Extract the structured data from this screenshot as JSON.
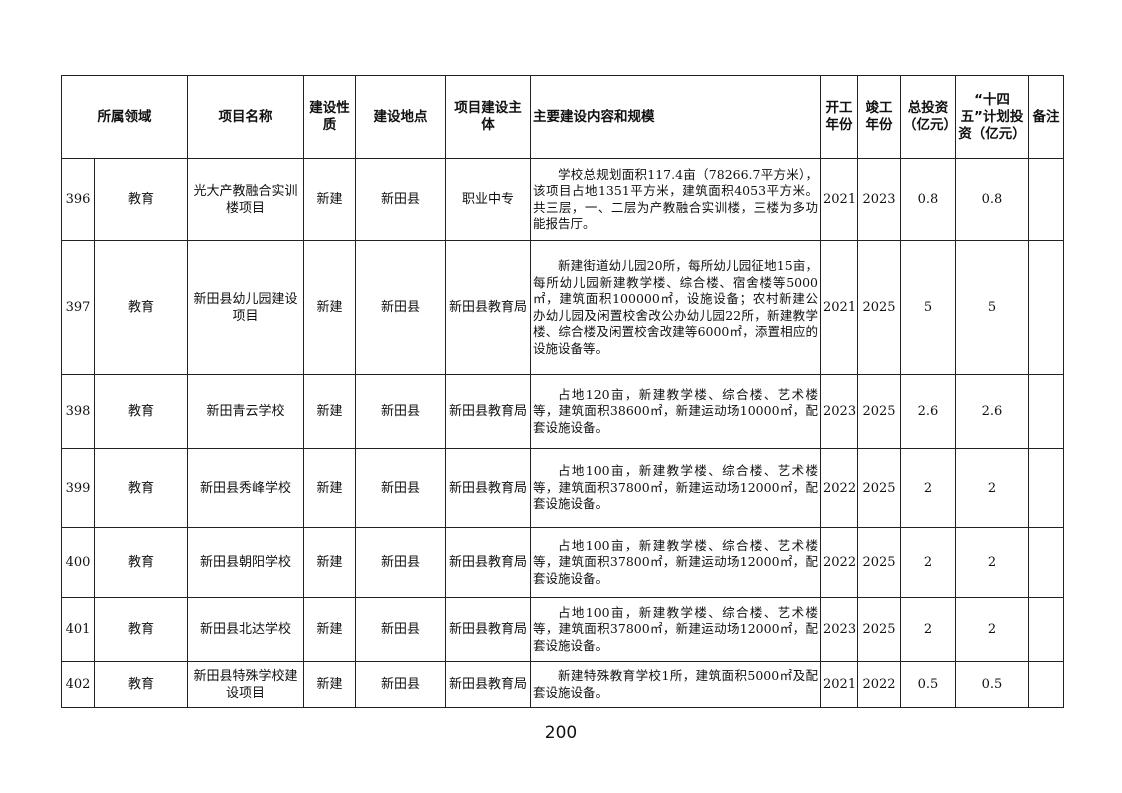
{
  "headers": {
    "domain": "所属领域",
    "name": "项目名称",
    "nature": "建设性质",
    "location": "建设地点",
    "owner": "项目建设主体",
    "content": "主要建设内容和规模",
    "start": "开工年份",
    "end": "竣工年份",
    "total": "总投资（亿元）",
    "plan": "“十四五”计划投资（亿元）",
    "remark": "备注"
  },
  "rows": [
    {
      "no": "396",
      "domain": "教育",
      "name": "光大产教融合实训楼项目",
      "nature": "新建",
      "location": "新田县",
      "owner": "职业中专",
      "content": "学校总规划面积117.4亩（78266.7平方米），该项目占地1351平方米，建筑面积4053平方米。共三层，一、二层为产教融合实训楼，三楼为多功能报告厅。",
      "start": "2021",
      "end": "2023",
      "total": "0.8",
      "plan": "0.8",
      "remark": ""
    },
    {
      "no": "397",
      "domain": "教育",
      "name": "新田县幼儿园建设项目",
      "nature": "新建",
      "location": "新田县",
      "owner": "新田县教育局",
      "content": "新建街道幼儿园20所，每所幼儿园征地15亩，每所幼儿园新建教学楼、综合楼、宿舍楼等5000㎡，建筑面积100000㎡，设施设备；农村新建公办幼儿园及闲置校舍改公办幼儿园22所，新建教学楼、综合楼及闲置校舍改建等6000㎡，添置相应的设施设备等。",
      "start": "2021",
      "end": "2025",
      "total": "5",
      "plan": "5",
      "remark": ""
    },
    {
      "no": "398",
      "domain": "教育",
      "name": "新田青云学校",
      "nature": "新建",
      "location": "新田县",
      "owner": "新田县教育局",
      "content": "占地120亩，新建教学楼、综合楼、艺术楼等，建筑面积38600㎡，新建运动场10000㎡，配套设施设备。",
      "start": "2023",
      "end": "2025",
      "total": "2.6",
      "plan": "2.6",
      "remark": ""
    },
    {
      "no": "399",
      "domain": "教育",
      "name": "新田县秀峰学校",
      "nature": "新建",
      "location": "新田县",
      "owner": "新田县教育局",
      "content": "占地100亩，新建教学楼、综合楼、艺术楼等，建筑面积37800㎡，新建运动场12000㎡，配套设施设备。",
      "start": "2022",
      "end": "2025",
      "total": "2",
      "plan": "2",
      "remark": ""
    },
    {
      "no": "400",
      "domain": "教育",
      "name": "新田县朝阳学校",
      "nature": "新建",
      "location": "新田县",
      "owner": "新田县教育局",
      "content": "占地100亩，新建教学楼、综合楼、艺术楼等，建筑面积37800㎡，新建运动场12000㎡，配套设施设备。",
      "start": "2022",
      "end": "2025",
      "total": "2",
      "plan": "2",
      "remark": ""
    },
    {
      "no": "401",
      "domain": "教育",
      "name": "新田县北达学校",
      "nature": "新建",
      "location": "新田县",
      "owner": "新田县教育局",
      "content": "占地100亩，新建教学楼、综合楼、艺术楼等，建筑面积37800㎡，新建运动场12000㎡，配套设施设备。",
      "start": "2023",
      "end": "2025",
      "total": "2",
      "plan": "2",
      "remark": ""
    },
    {
      "no": "402",
      "domain": "教育",
      "name": "新田县特殊学校建设项目",
      "nature": "新建",
      "location": "新田县",
      "owner": "新田县教育局",
      "content": "新建特殊教育学校1所，建筑面积5000㎡及配套设施设备。",
      "start": "2021",
      "end": "2022",
      "total": "0.5",
      "plan": "0.5",
      "remark": ""
    }
  ],
  "page_number": "200"
}
